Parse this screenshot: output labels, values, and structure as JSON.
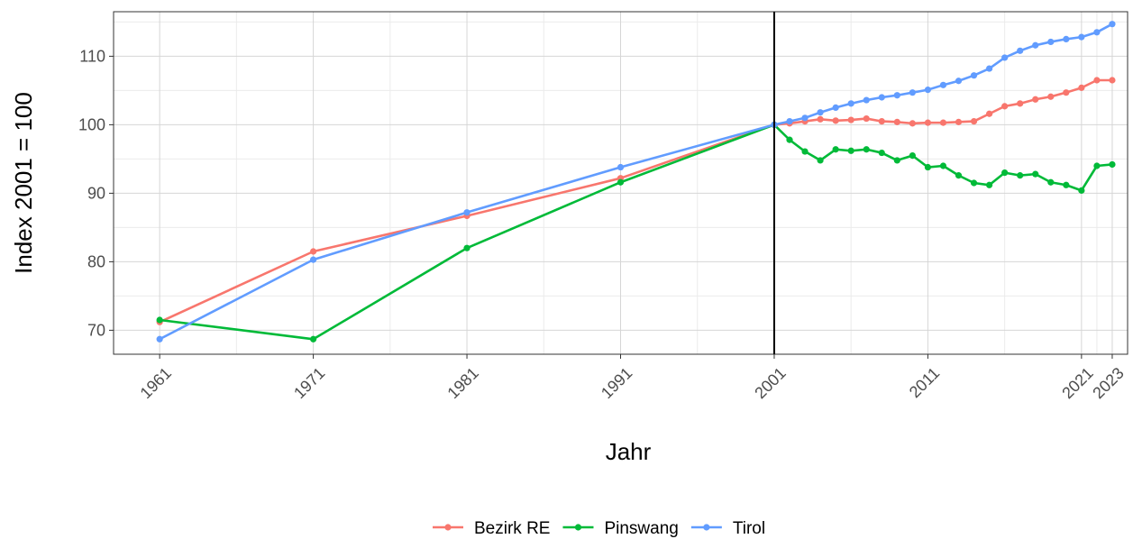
{
  "chart_data": {
    "type": "line",
    "title": "",
    "xlabel": "Jahr",
    "ylabel": "Index 2001 = 100",
    "xlim": [
      1958,
      2024
    ],
    "ylim": [
      66.5,
      116.5
    ],
    "x_ticks": [
      1961,
      1971,
      1981,
      1991,
      2001,
      2011,
      2021,
      2023
    ],
    "y_ticks": [
      70,
      80,
      90,
      100,
      110
    ],
    "y_minor_gridlines": [
      75,
      85,
      95,
      105,
      115
    ],
    "grid": true,
    "reference_line_x": 2001,
    "legend_position": "bottom",
    "series": [
      {
        "name": "Bezirk RE",
        "color": "#F8766D",
        "x": [
          1961,
          1971,
          1981,
          1991,
          2001,
          2002,
          2003,
          2004,
          2005,
          2006,
          2007,
          2008,
          2009,
          2010,
          2011,
          2012,
          2013,
          2014,
          2015,
          2016,
          2017,
          2018,
          2019,
          2020,
          2021,
          2022,
          2023
        ],
        "values": [
          71.2,
          81.5,
          86.7,
          92.2,
          100.0,
          100.2,
          100.5,
          100.8,
          100.6,
          100.7,
          100.9,
          100.5,
          100.4,
          100.2,
          100.3,
          100.3,
          100.4,
          100.5,
          101.6,
          102.7,
          103.1,
          103.7,
          104.1,
          104.7,
          105.4,
          106.5,
          106.5
        ]
      },
      {
        "name": "Pinswang",
        "color": "#00BA38",
        "x": [
          1961,
          1971,
          1981,
          1991,
          2001,
          2002,
          2003,
          2004,
          2005,
          2006,
          2007,
          2008,
          2009,
          2010,
          2011,
          2012,
          2013,
          2014,
          2015,
          2016,
          2017,
          2018,
          2019,
          2020,
          2021,
          2022,
          2023
        ],
        "values": [
          71.5,
          68.7,
          82.0,
          91.6,
          100.0,
          97.8,
          96.1,
          94.8,
          96.4,
          96.2,
          96.4,
          95.9,
          94.8,
          95.5,
          93.8,
          94.0,
          92.6,
          91.5,
          91.2,
          93.0,
          92.6,
          92.8,
          91.6,
          91.2,
          90.4,
          94.0,
          94.2
        ]
      },
      {
        "name": "Tirol",
        "color": "#619CFF",
        "x": [
          1961,
          1971,
          1981,
          1991,
          2001,
          2002,
          2003,
          2004,
          2005,
          2006,
          2007,
          2008,
          2009,
          2010,
          2011,
          2012,
          2013,
          2014,
          2015,
          2016,
          2017,
          2018,
          2019,
          2020,
          2021,
          2022,
          2023
        ],
        "values": [
          68.7,
          80.3,
          87.2,
          93.8,
          100.0,
          100.5,
          101.0,
          101.8,
          102.5,
          103.1,
          103.6,
          104.0,
          104.3,
          104.7,
          105.1,
          105.8,
          106.4,
          107.2,
          108.2,
          109.8,
          110.8,
          111.6,
          112.1,
          112.5,
          112.8,
          113.5,
          114.7
        ]
      }
    ]
  }
}
